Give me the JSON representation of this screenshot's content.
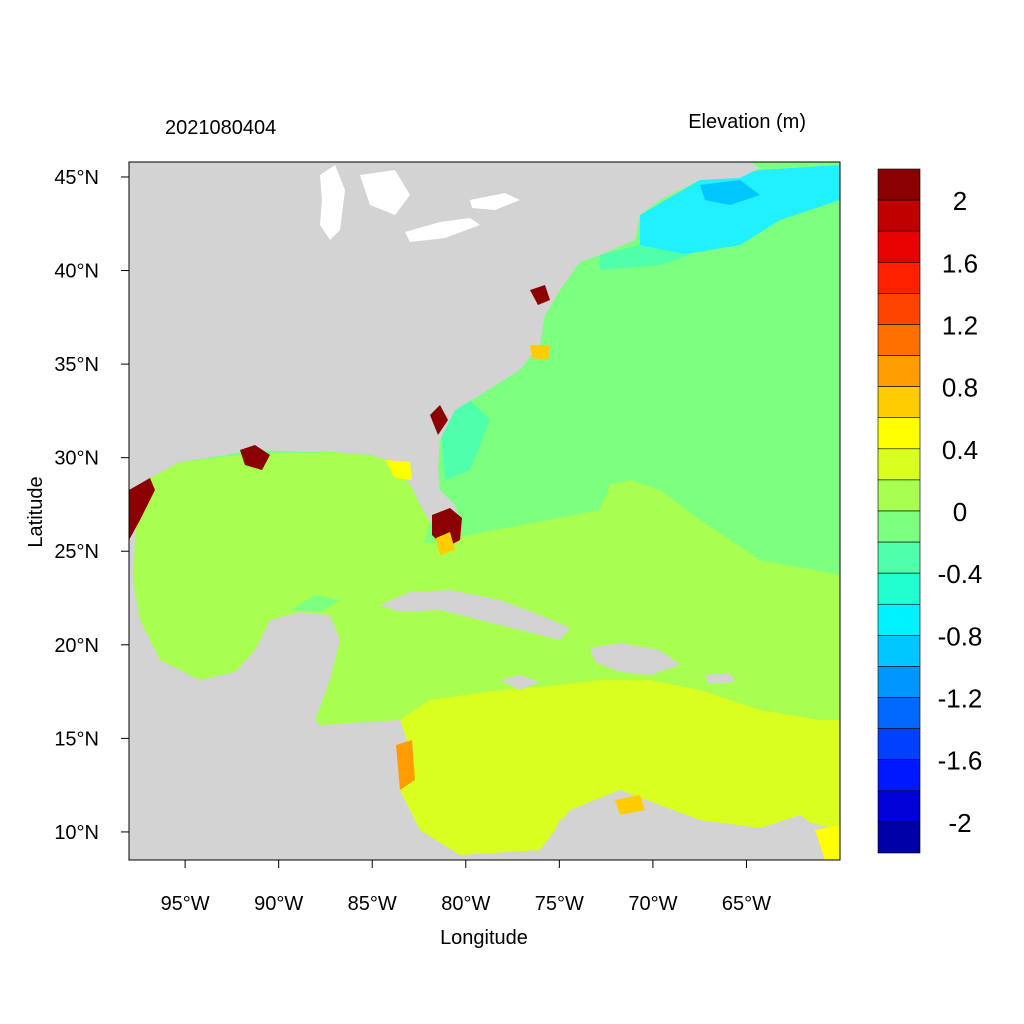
{
  "title_left": "2021080404",
  "title_right": "Elevation (m)",
  "x_axis": {
    "label": "Longitude",
    "ticks": [
      {
        "value": -95,
        "label": "95°W"
      },
      {
        "value": -90,
        "label": "90°W"
      },
      {
        "value": -85,
        "label": "85°W"
      },
      {
        "value": -80,
        "label": "80°W"
      },
      {
        "value": -75,
        "label": "75°W"
      },
      {
        "value": -70,
        "label": "70°W"
      },
      {
        "value": -65,
        "label": "65°W"
      }
    ]
  },
  "y_axis": {
    "label": "Latitude",
    "ticks": [
      {
        "value": 45,
        "label": "45°N"
      },
      {
        "value": 40,
        "label": "40°N"
      },
      {
        "value": 35,
        "label": "35°N"
      },
      {
        "value": 30,
        "label": "30°N"
      },
      {
        "value": 25,
        "label": "25°N"
      },
      {
        "value": 20,
        "label": "20°N"
      },
      {
        "value": 15,
        "label": "15°N"
      },
      {
        "value": 10,
        "label": "10°N"
      }
    ]
  },
  "extent": {
    "lon_min": -98,
    "lon_max": -60,
    "lat_min": 8.5,
    "lat_max": 45.8
  },
  "colorbar": {
    "colors": [
      "#8b0000",
      "#c00000",
      "#e60000",
      "#ff2000",
      "#ff4400",
      "#ff7000",
      "#ff9c00",
      "#ffcc00",
      "#ffff00",
      "#d8ff20",
      "#a8ff50",
      "#7dff80",
      "#50ffaa",
      "#20ffd0",
      "#00f2ff",
      "#00c6ff",
      "#0096ff",
      "#0068ff",
      "#0040ff",
      "#0018ff",
      "#0000d8",
      "#0000a8"
    ],
    "labels": [
      {
        "text": "2",
        "slot": 1
      },
      {
        "text": "1.6",
        "slot": 3
      },
      {
        "text": "1.2",
        "slot": 5
      },
      {
        "text": "0.8",
        "slot": 7
      },
      {
        "text": "0.4",
        "slot": 9
      },
      {
        "text": "0",
        "slot": 11
      },
      {
        "text": "-0.4",
        "slot": 13
      },
      {
        "text": "-0.8",
        "slot": 15
      },
      {
        "text": "-1.2",
        "slot": 17
      },
      {
        "text": "-1.6",
        "slot": 19
      },
      {
        "text": "-2",
        "slot": 21
      }
    ]
  },
  "colors": {
    "land": "#d3d3d3",
    "gulf": "#a8ff50",
    "atlantic": "#7dff80",
    "caribbean": "#d8ff20",
    "gulf_of_maine": "#20e8ff",
    "surge": "#8b0000"
  }
}
